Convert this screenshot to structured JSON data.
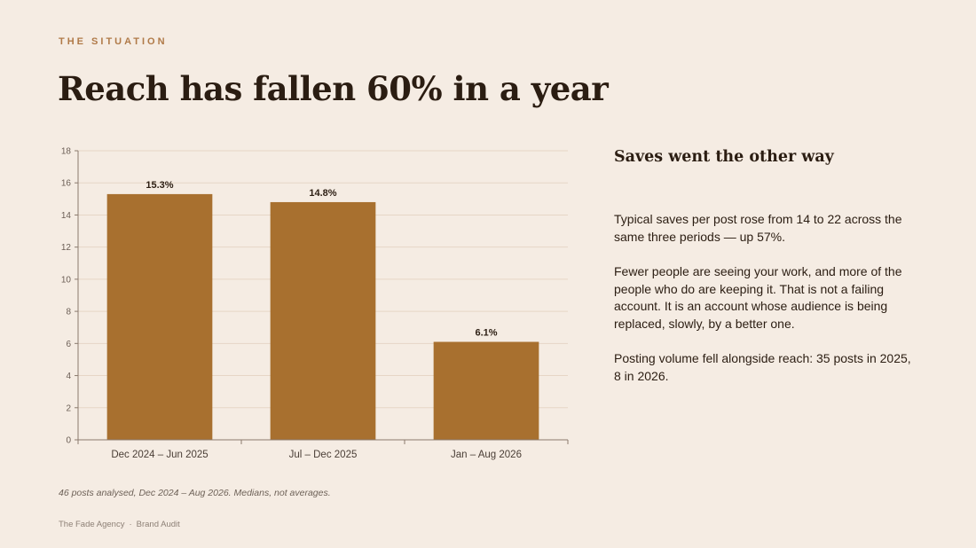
{
  "header": {
    "kicker": "THE SITUATION",
    "title": "Reach has fallen 60% in a year"
  },
  "chart_data": {
    "type": "bar",
    "categories": [
      "Dec 2024 – Jun 2025",
      "Jul – Dec 2025",
      "Jan – Aug 2026"
    ],
    "values": [
      15.3,
      14.8,
      6.1
    ],
    "data_labels": [
      "15.3%",
      "14.8%",
      "6.1%"
    ],
    "title": "",
    "xlabel": "",
    "ylabel": "",
    "ylim": [
      0,
      18
    ],
    "yticks": [
      0,
      2,
      4,
      6,
      8,
      10,
      12,
      14,
      16,
      18
    ],
    "grid": true,
    "legend": "none",
    "bar_color": "#a8702f"
  },
  "side": {
    "title": "Saves went the other way",
    "para1": "Typical saves per post rose from 14 to 22 across the same three periods — up 57%.",
    "para2": "Fewer people are seeing your work, and more of the people who do are keeping it. That is not a failing account. It is an account whose audience is being replaced, slowly, by a better one.",
    "para3": "Posting volume fell alongside reach: 35 posts in 2025, 8 in 2026."
  },
  "note": "46 posts analysed, Dec 2024 – Aug 2026. Medians, not averages.",
  "footer": {
    "agency": "The Fade Agency",
    "separator": "·",
    "doc": "Brand Audit"
  }
}
